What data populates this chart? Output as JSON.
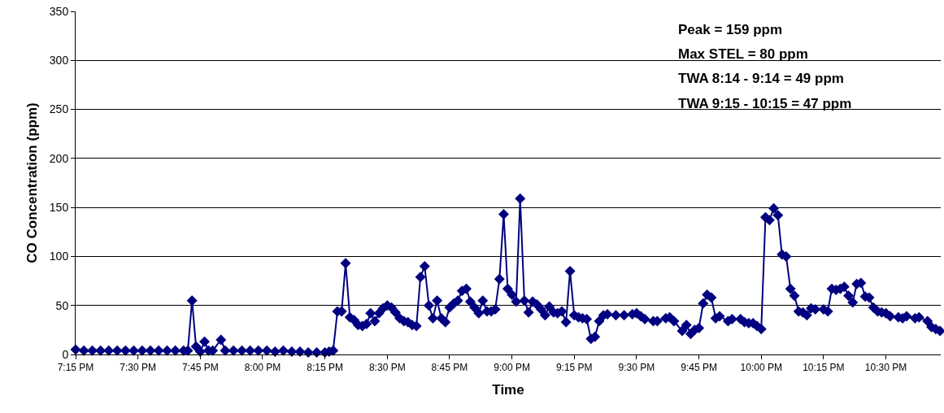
{
  "chart_data": {
    "type": "line",
    "xlabel": "Time",
    "ylabel": "CO Concentration (ppm)",
    "annotations": [
      "Peak = 159 ppm",
      "Max STEL = 80 ppm",
      "TWA 8:14 - 9:14 = 49 ppm",
      "TWA 9:15 - 10:15 = 47 ppm"
    ],
    "x": [
      19.25,
      19.283,
      19.317,
      19.35,
      19.383,
      19.417,
      19.45,
      19.483,
      19.517,
      19.55,
      19.583,
      19.617,
      19.65,
      19.683,
      19.7,
      19.717,
      19.733,
      19.75,
      19.767,
      19.783,
      19.8,
      19.833,
      19.85,
      19.883,
      19.917,
      19.95,
      19.983,
      20.017,
      20.05,
      20.083,
      20.117,
      20.15,
      20.183,
      20.217,
      20.25,
      20.267,
      20.283,
      20.3,
      20.317,
      20.333,
      20.35,
      20.367,
      20.383,
      20.4,
      20.417,
      20.433,
      20.45,
      20.467,
      20.483,
      20.5,
      20.517,
      20.533,
      20.55,
      20.567,
      20.583,
      20.6,
      20.617,
      20.633,
      20.65,
      20.667,
      20.683,
      20.7,
      20.717,
      20.733,
      20.75,
      20.767,
      20.783,
      20.8,
      20.817,
      20.833,
      20.85,
      20.867,
      20.883,
      20.9,
      20.917,
      20.933,
      20.95,
      20.967,
      20.983,
      21.0,
      21.017,
      21.033,
      21.05,
      21.067,
      21.083,
      21.1,
      21.117,
      21.133,
      21.15,
      21.167,
      21.183,
      21.2,
      21.217,
      21.233,
      21.25,
      21.267,
      21.283,
      21.3,
      21.317,
      21.333,
      21.35,
      21.367,
      21.383,
      21.417,
      21.45,
      21.483,
      21.5,
      21.517,
      21.533,
      21.567,
      21.583,
      21.617,
      21.633,
      21.65,
      21.683,
      21.7,
      21.717,
      21.733,
      21.75,
      21.767,
      21.783,
      21.8,
      21.817,
      21.833,
      21.867,
      21.883,
      21.917,
      21.933,
      21.95,
      21.967,
      21.983,
      22.0,
      22.017,
      22.033,
      22.05,
      22.067,
      22.083,
      22.1,
      22.117,
      22.133,
      22.15,
      22.167,
      22.183,
      22.2,
      22.217,
      22.25,
      22.267,
      22.283,
      22.3,
      22.317,
      22.333,
      22.35,
      22.367,
      22.383,
      22.4,
      22.417,
      22.433,
      22.45,
      22.467,
      22.483,
      22.5,
      22.517,
      22.55,
      22.567,
      22.583,
      22.617,
      22.633,
      22.667,
      22.683,
      22.7,
      22.717
    ],
    "series": [
      {
        "color": "#000080",
        "values": [
          5,
          4,
          4,
          4,
          4,
          4,
          4,
          4,
          4,
          4,
          4,
          4,
          4,
          4,
          4,
          55,
          8,
          3,
          13,
          4,
          4,
          15,
          4,
          4,
          4,
          4,
          4,
          4,
          3,
          4,
          3,
          3,
          2,
          2,
          2,
          3,
          4,
          44,
          44,
          93,
          38,
          35,
          30,
          29,
          31,
          42,
          34,
          42,
          47,
          50,
          48,
          43,
          37,
          34,
          33,
          30,
          29,
          79,
          90,
          50,
          37,
          55,
          37,
          33,
          48,
          52,
          55,
          65,
          67,
          54,
          48,
          42,
          55,
          44,
          44,
          46,
          77,
          143,
          67,
          61,
          54,
          159,
          55,
          43,
          54,
          51,
          46,
          40,
          49,
          43,
          42,
          44,
          33,
          85,
          40,
          38,
          37,
          36,
          16,
          18,
          34,
          40,
          41,
          40,
          40,
          41,
          42,
          39,
          36,
          34,
          34,
          37,
          38,
          34,
          24,
          30,
          21,
          25,
          27,
          52,
          61,
          58,
          37,
          39,
          34,
          36,
          36,
          33,
          32,
          32,
          29,
          26,
          140,
          137,
          149,
          142,
          102,
          100,
          67,
          60,
          44,
          43,
          40,
          47,
          46,
          46,
          44,
          67,
          66,
          67,
          69,
          60,
          53,
          72,
          73,
          59,
          58,
          48,
          44,
          43,
          42,
          39,
          38,
          37,
          39,
          37,
          38,
          34,
          28,
          26,
          24
        ]
      }
    ],
    "xlim": [
      19.25,
      22.72
    ],
    "xticks": [
      {
        "value": 19.25,
        "label": "7:15 PM"
      },
      {
        "value": 19.5,
        "label": "7:30 PM"
      },
      {
        "value": 19.75,
        "label": "7:45 PM"
      },
      {
        "value": 20.0,
        "label": "8:00 PM"
      },
      {
        "value": 20.25,
        "label": "8:15 PM"
      },
      {
        "value": 20.5,
        "label": "8:30 PM"
      },
      {
        "value": 20.75,
        "label": "8:45 PM"
      },
      {
        "value": 21.0,
        "label": "9:00 PM"
      },
      {
        "value": 21.25,
        "label": "9:15 PM"
      },
      {
        "value": 21.5,
        "label": "9:30 PM"
      },
      {
        "value": 21.75,
        "label": "9:45 PM"
      },
      {
        "value": 22.0,
        "label": "10:00 PM"
      },
      {
        "value": 22.25,
        "label": "10:15 PM"
      },
      {
        "value": 22.5,
        "label": "10:30 PM"
      }
    ],
    "ylim": [
      0,
      350
    ],
    "yticks": [
      0,
      50,
      100,
      150,
      200,
      250,
      300,
      350
    ],
    "grid": "y",
    "marker": "diamond",
    "line_style": "solid"
  }
}
